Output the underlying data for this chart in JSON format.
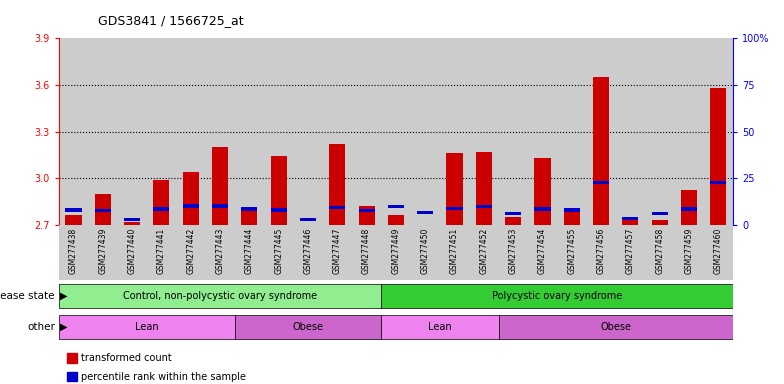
{
  "title": "GDS3841 / 1566725_at",
  "samples": [
    "GSM277438",
    "GSM277439",
    "GSM277440",
    "GSM277441",
    "GSM277442",
    "GSM277443",
    "GSM277444",
    "GSM277445",
    "GSM277446",
    "GSM277447",
    "GSM277448",
    "GSM277449",
    "GSM277450",
    "GSM277451",
    "GSM277452",
    "GSM277453",
    "GSM277454",
    "GSM277455",
    "GSM277456",
    "GSM277457",
    "GSM277458",
    "GSM277459",
    "GSM277460"
  ],
  "red_values": [
    2.76,
    2.9,
    2.72,
    2.99,
    3.04,
    3.2,
    2.79,
    3.14,
    2.7,
    3.22,
    2.82,
    2.76,
    2.68,
    3.16,
    3.17,
    2.75,
    3.13,
    2.81,
    3.65,
    2.74,
    2.73,
    2.92,
    3.58
  ],
  "blue_values": [
    2.795,
    2.79,
    2.735,
    2.8,
    2.82,
    2.82,
    2.8,
    2.795,
    2.735,
    2.81,
    2.79,
    2.815,
    2.78,
    2.805,
    2.815,
    2.77,
    2.8,
    2.795,
    2.97,
    2.74,
    2.77,
    2.8,
    2.97
  ],
  "ymin": 2.7,
  "ymax": 3.9,
  "yticks_left": [
    2.7,
    3.0,
    3.3,
    3.6,
    3.9
  ],
  "ytick_labels_right": [
    "0",
    "25",
    "50",
    "75",
    "100%"
  ],
  "grid_lines": [
    3.0,
    3.3,
    3.6
  ],
  "disease_groups": [
    {
      "label": "Control, non-polycystic ovary syndrome",
      "start": 0,
      "end": 11,
      "color": "#90EE90"
    },
    {
      "label": "Polycystic ovary syndrome",
      "start": 11,
      "end": 23,
      "color": "#33CC33"
    }
  ],
  "other_groups": [
    {
      "label": "Lean",
      "start": 0,
      "end": 6,
      "color": "#EE82EE"
    },
    {
      "label": "Obese",
      "start": 6,
      "end": 11,
      "color": "#CC66CC"
    },
    {
      "label": "Lean",
      "start": 11,
      "end": 15,
      "color": "#EE82EE"
    },
    {
      "label": "Obese",
      "start": 15,
      "end": 23,
      "color": "#CC66CC"
    }
  ],
  "bar_color": "#CC0000",
  "blue_color": "#0000CC",
  "bar_width": 0.55,
  "legend_items": [
    {
      "label": "transformed count",
      "color": "#CC0000"
    },
    {
      "label": "percentile rank within the sample",
      "color": "#0000CC"
    }
  ]
}
